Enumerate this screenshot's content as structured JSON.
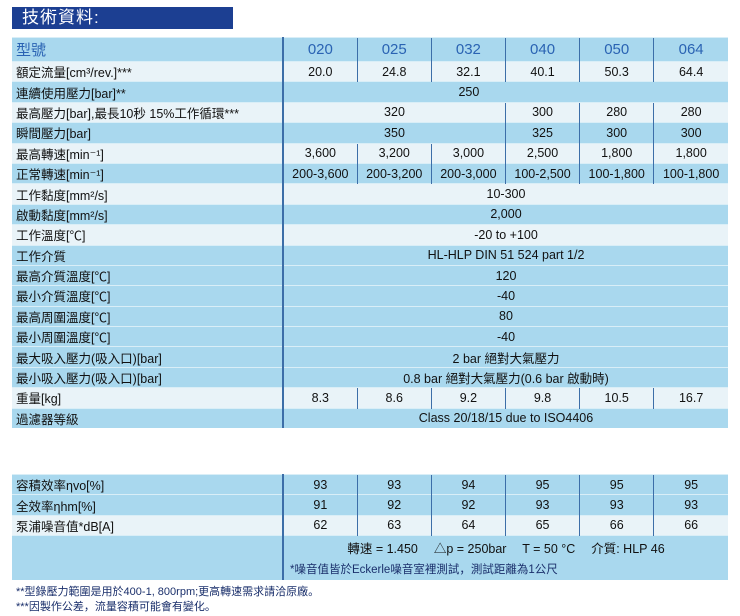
{
  "title": "技術資料:",
  "models_label": "型號",
  "models": [
    "020",
    "025",
    "032",
    "040",
    "050",
    "064"
  ],
  "rows": [
    {
      "label": "額定流量[cm³/rev.]***",
      "style": "l",
      "cells": [
        {
          "v": "20.0",
          "s": 1
        },
        {
          "v": "24.8",
          "s": 1
        },
        {
          "v": "32.1",
          "s": 1
        },
        {
          "v": "40.1",
          "s": 1
        },
        {
          "v": "50.3",
          "s": 1
        },
        {
          "v": "64.4",
          "s": 1
        }
      ]
    },
    {
      "label": "連續使用壓力[bar]**",
      "style": "b",
      "cells": [
        {
          "v": "250",
          "s": 5
        },
        {
          "v": "",
          "s": 1
        }
      ]
    },
    {
      "label": "最高壓力[bar],最長10秒 15%工作循環***",
      "style": "l",
      "cells": [
        {
          "v": "320",
          "s": 3
        },
        {
          "v": "300",
          "s": 1
        },
        {
          "v": "280",
          "s": 1
        },
        {
          "v": "280",
          "s": 1
        }
      ]
    },
    {
      "label": "瞬間壓力[bar]",
      "style": "b",
      "cells": [
        {
          "v": "350",
          "s": 3
        },
        {
          "v": "325",
          "s": 1
        },
        {
          "v": "300",
          "s": 1
        },
        {
          "v": "300",
          "s": 1
        }
      ]
    },
    {
      "label": "最高轉速[min⁻¹]",
      "style": "l",
      "cells": [
        {
          "v": "3,600",
          "s": 1
        },
        {
          "v": "3,200",
          "s": 1
        },
        {
          "v": "3,000",
          "s": 1
        },
        {
          "v": "2,500",
          "s": 1
        },
        {
          "v": "1,800",
          "s": 1
        },
        {
          "v": "1,800",
          "s": 1
        }
      ]
    },
    {
      "label": "正常轉速[min⁻¹]",
      "style": "b",
      "cells": [
        {
          "v": "200-3,600",
          "s": 1
        },
        {
          "v": "200-3,200",
          "s": 1
        },
        {
          "v": "200-3,000",
          "s": 1
        },
        {
          "v": "100-2,500",
          "s": 1
        },
        {
          "v": "100-1,800",
          "s": 1
        },
        {
          "v": "100-1,800",
          "s": 1
        }
      ]
    },
    {
      "label": "工作黏度[mm²/s]",
      "style": "l",
      "cells": [
        {
          "v": "10-300",
          "s": 6
        }
      ]
    },
    {
      "label": "啟動黏度[mm²/s]",
      "style": "b",
      "cells": [
        {
          "v": "2,000",
          "s": 6
        }
      ]
    },
    {
      "label": "工作溫度[℃]",
      "style": "l",
      "cells": [
        {
          "v": "-20 to +100",
          "s": 6
        }
      ]
    },
    {
      "label": "工作介質",
      "style": "b",
      "cells": [
        {
          "v": "HL-HLP DIN 51 524 part 1/2",
          "s": 6
        }
      ]
    },
    {
      "label": "最高介質溫度[℃]",
      "style": "b",
      "cells": [
        {
          "v": "120",
          "s": 6
        }
      ]
    },
    {
      "label": "最小介質溫度[℃]",
      "style": "b",
      "cells": [
        {
          "v": "-40",
          "s": 6
        }
      ]
    },
    {
      "label": "最高周圍溫度[℃]",
      "style": "b",
      "cells": [
        {
          "v": "80",
          "s": 6
        }
      ]
    },
    {
      "label": "最小周圍溫度[℃]",
      "style": "b",
      "cells": [
        {
          "v": "-40",
          "s": 6
        }
      ]
    },
    {
      "label": "最大吸入壓力(吸入口)[bar]",
      "style": "b",
      "cells": [
        {
          "v": "2 bar 絕對大氣壓力",
          "s": 6
        }
      ]
    },
    {
      "label": "最小吸入壓力(吸入口)[bar]",
      "style": "b",
      "cells": [
        {
          "v": "0.8 bar 絕對大氣壓力(0.6 bar 啟動時)",
          "s": 6
        }
      ]
    },
    {
      "label": "重量[kg]",
      "style": "l",
      "cells": [
        {
          "v": "8.3",
          "s": 1
        },
        {
          "v": "8.6",
          "s": 1
        },
        {
          "v": "9.2",
          "s": 1
        },
        {
          "v": "9.8",
          "s": 1
        },
        {
          "v": "10.5",
          "s": 1
        },
        {
          "v": "16.7",
          "s": 1
        }
      ]
    },
    {
      "label": "過濾器等級",
      "style": "b",
      "cells": [
        {
          "v": "Class 20/18/15 due to ISO4406",
          "s": 6
        }
      ]
    }
  ],
  "perf_rows": [
    {
      "label": "容積效率ηvo[%]",
      "style": "b",
      "cells": [
        {
          "v": "93",
          "s": 1
        },
        {
          "v": "93",
          "s": 1
        },
        {
          "v": "94",
          "s": 1
        },
        {
          "v": "95",
          "s": 1
        },
        {
          "v": "95",
          "s": 1
        },
        {
          "v": "95",
          "s": 1
        }
      ]
    },
    {
      "label": "全效率ηhm[%]",
      "style": "b",
      "cells": [
        {
          "v": "91",
          "s": 1
        },
        {
          "v": "92",
          "s": 1
        },
        {
          "v": "92",
          "s": 1
        },
        {
          "v": "93",
          "s": 1
        },
        {
          "v": "93",
          "s": 1
        },
        {
          "v": "93",
          "s": 1
        }
      ]
    },
    {
      "label": "泵浦噪音值*dB[A]",
      "style": "l",
      "cells": [
        {
          "v": "62",
          "s": 1
        },
        {
          "v": "63",
          "s": 1
        },
        {
          "v": "64",
          "s": 1
        },
        {
          "v": "65",
          "s": 1
        },
        {
          "v": "66",
          "s": 1
        },
        {
          "v": "66",
          "s": 1
        }
      ]
    }
  ],
  "conditions": "轉速 = 1.450　 △p = 250bar　 T = 50 °C　 介質: HLP 46",
  "noise_note": "*噪音值皆於Eckerle噪音室裡測試，測試距離為1公尺",
  "footnotes": [
    "**型錄壓力範圍是用於400-1, 800rpm;更高轉速需求請洽原廠。",
    "***因製作公差，流量容積可能會有變化。"
  ],
  "colors": {
    "title_bar": "#1c3f92",
    "row_blue": "#a9d8ee",
    "row_light": "#e9f3f8",
    "header_text": "#2a63b3"
  }
}
